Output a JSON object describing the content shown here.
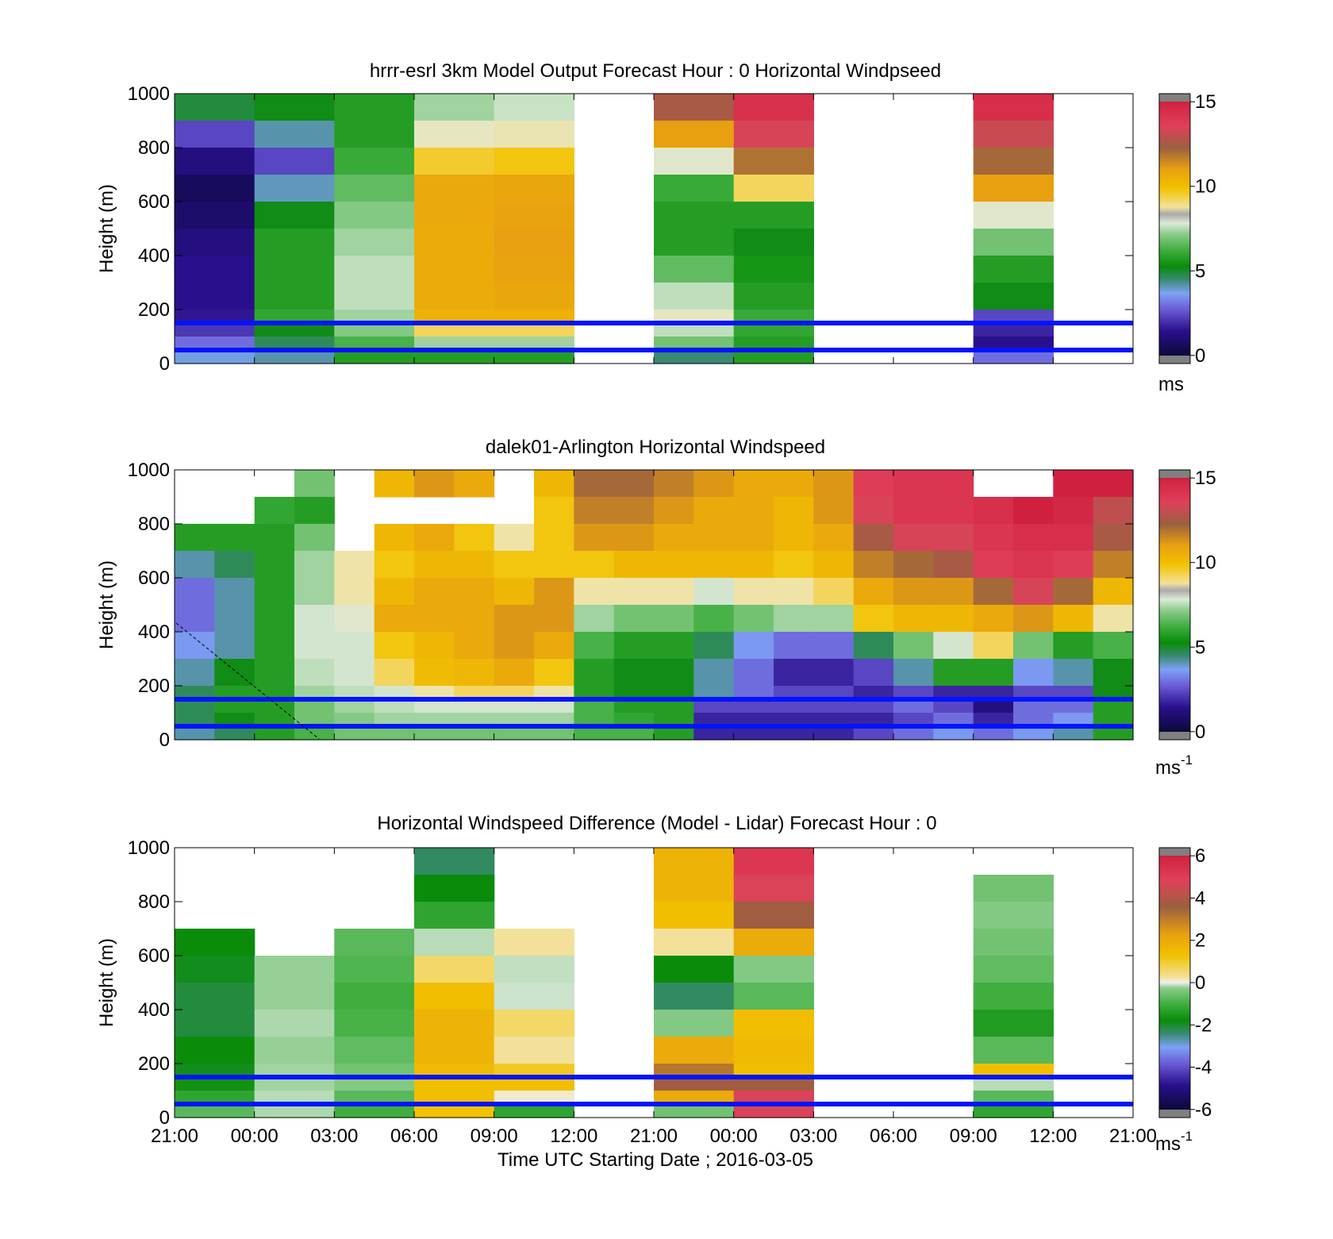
{
  "figure": {
    "xlabel": "Time UTC  Starting Date ; 2016-03-05",
    "xticks": [
      "21:00",
      "00:00",
      "03:00",
      "06:00",
      "09:00",
      "12:00",
      "21:00",
      "00:00",
      "03:00",
      "06:00",
      "09:00",
      "12:00",
      "21:00"
    ]
  },
  "panels": [
    {
      "title": "hrrr-esrl 3km Model Output   Forecast Hour : 0 Horizontal Windpseed",
      "ylabel": "Height (m)",
      "yticks": [
        "0",
        "200",
        "400",
        "600",
        "800",
        "1000"
      ],
      "colorbar": {
        "ticks": [
          "0",
          "5",
          "10",
          "15"
        ],
        "unit": "ms",
        "unit_sup": ""
      }
    },
    {
      "title": "dalek01-Arlington  Horizontal Windspeed",
      "ylabel": "Height (m)",
      "yticks": [
        "0",
        "200",
        "400",
        "600",
        "800",
        "1000"
      ],
      "colorbar": {
        "ticks": [
          "0",
          "5",
          "10",
          "15"
        ],
        "unit": "ms",
        "unit_sup": "-1"
      }
    },
    {
      "title": "Horizontal Windspeed Difference (Model - Lidar) Forecast Hour : 0",
      "ylabel": "Height (m)",
      "yticks": [
        "0",
        "200",
        "400",
        "600",
        "800",
        "1000"
      ],
      "colorbar": {
        "ticks": [
          "-6",
          "-4",
          "-2",
          "0",
          "2",
          "4",
          "6"
        ],
        "unit": "ms",
        "unit_sup": "-1"
      }
    }
  ],
  "chart_data": [
    {
      "type": "heatmap",
      "title": "hrrr-esrl 3km Model Output   Forecast Hour : 0 Horizontal Windpseed",
      "ylabel": "Height (m)",
      "ylim": [
        0,
        1000
      ],
      "xlim": [
        0,
        12
      ],
      "colorbar_range": [
        0,
        15
      ],
      "colorbar_unit": "ms",
      "heights": [
        1000,
        900,
        800,
        700,
        600,
        500,
        400,
        300,
        200,
        150,
        100,
        50,
        0
      ],
      "columns": [
        {
          "x0": 0,
          "x1": 1,
          "values": [
            4.2,
            2.0,
            1.0,
            0.5,
            0.7,
            1.0,
            1.2,
            1.2,
            1.3,
            1.8,
            2.5,
            3.2
          ]
        },
        {
          "x0": 1,
          "x1": 2,
          "values": [
            4.5,
            3.5,
            2.0,
            3.4,
            4.5,
            5.0,
            5.0,
            5.0,
            5.2,
            4.5,
            4.0,
            3.5
          ]
        },
        {
          "x0": 2,
          "x1": 3,
          "values": [
            5.0,
            5.0,
            5.3,
            5.8,
            6.2,
            6.5,
            6.8,
            6.8,
            6.5,
            6.2,
            5.5,
            5.0
          ]
        },
        {
          "x0": 3,
          "x1": 4,
          "values": [
            6.5,
            7.3,
            8.3,
            9.5,
            9.5,
            9.4,
            9.4,
            9.4,
            9.2,
            8.0,
            6.5,
            5.0
          ]
        },
        {
          "x0": 4,
          "x1": 5,
          "values": [
            6.9,
            7.4,
            8.5,
            9.6,
            9.7,
            9.8,
            9.7,
            9.6,
            9.2,
            8.0,
            6.5,
            5.0
          ]
        },
        {
          "x0": 6,
          "x1": 7,
          "values": [
            11.5,
            9.8,
            7.2,
            5.3,
            5.0,
            5.0,
            5.8,
            6.8,
            7.3,
            6.8,
            6.0,
            3.8
          ]
        },
        {
          "x0": 7,
          "x1": 8,
          "values": [
            13.8,
            12.5,
            10.8,
            8.0,
            5.0,
            4.5,
            4.8,
            5.0,
            5.3,
            5.2,
            5.0,
            5.0
          ]
        },
        {
          "x0": 10,
          "x1": 11,
          "values": [
            14.0,
            12.2,
            11.0,
            9.8,
            7.2,
            6.0,
            5.0,
            4.5,
            2.0,
            1.5,
            1.2,
            2.5
          ]
        }
      ],
      "reference_lines_m": [
        150,
        50
      ]
    },
    {
      "type": "heatmap",
      "title": "dalek01-Arlington  Horizontal Windspeed",
      "ylabel": "Height (m)",
      "ylim": [
        0,
        1000
      ],
      "xlim": [
        0,
        12
      ],
      "colorbar_range": [
        0,
        15
      ],
      "colorbar_unit": "ms-1",
      "heights": [
        1000,
        900,
        800,
        700,
        600,
        500,
        400,
        300,
        200,
        150,
        100,
        50,
        0
      ],
      "columns": [
        {
          "x0": 0.0,
          "x1": 0.5,
          "values": [
            null,
            null,
            5.0,
            3.5,
            2.5,
            2.5,
            3.0,
            3.5,
            4.0,
            4.0,
            4.0,
            3.5
          ]
        },
        {
          "x0": 0.5,
          "x1": 1.0,
          "values": [
            null,
            null,
            5.0,
            4.0,
            3.5,
            3.5,
            3.5,
            4.5,
            5.0,
            5.0,
            4.5,
            4.0
          ]
        },
        {
          "x0": 1.0,
          "x1": 1.5,
          "values": [
            null,
            5.2,
            5.0,
            5.0,
            5.0,
            5.0,
            5.0,
            5.0,
            5.0,
            5.0,
            5.0,
            5.0
          ]
        },
        {
          "x0": 1.5,
          "x1": 2.0,
          "values": [
            6.0,
            5.0,
            6.0,
            6.5,
            6.5,
            7.0,
            7.0,
            6.8,
            6.5,
            6.0,
            6.0,
            5.5
          ]
        },
        {
          "x0": 2.0,
          "x1": 2.5,
          "values": [
            null,
            null,
            null,
            7.5,
            7.5,
            7.2,
            7.0,
            7.0,
            6.8,
            6.5,
            6.2,
            6.0
          ]
        },
        {
          "x0": 2.5,
          "x1": 3.0,
          "values": [
            9.0,
            null,
            9.0,
            8.5,
            9.0,
            9.5,
            8.5,
            8.0,
            7.0,
            6.8,
            6.5,
            6.0
          ]
        },
        {
          "x0": 3.0,
          "x1": 3.5,
          "values": [
            10.0,
            null,
            9.5,
            9.0,
            9.5,
            9.5,
            9.0,
            8.8,
            7.5,
            7.0,
            6.5,
            6.0
          ]
        },
        {
          "x0": 3.5,
          "x1": 4.0,
          "values": [
            9.5,
            null,
            8.5,
            9.0,
            9.5,
            9.5,
            9.5,
            9.0,
            8.0,
            7.0,
            6.5,
            6.0
          ]
        },
        {
          "x0": 4.0,
          "x1": 4.5,
          "values": [
            null,
            null,
            7.5,
            8.5,
            9.0,
            10.0,
            10.0,
            9.5,
            8.0,
            7.0,
            6.5,
            6.0
          ]
        },
        {
          "x0": 4.5,
          "x1": 5.0,
          "values": [
            9.0,
            8.5,
            8.5,
            8.5,
            10.0,
            10.0,
            9.5,
            8.5,
            7.5,
            7.0,
            6.5,
            6.0
          ]
        },
        {
          "x0": 5.0,
          "x1": 5.5,
          "values": [
            11.0,
            10.5,
            10.0,
            8.5,
            7.5,
            6.5,
            5.5,
            5.0,
            5.0,
            5.5,
            5.5,
            5.5
          ]
        },
        {
          "x0": 5.5,
          "x1": 6.0,
          "values": [
            11.0,
            10.5,
            10.0,
            9.0,
            7.5,
            6.0,
            5.0,
            4.5,
            4.5,
            5.0,
            5.2,
            5.5
          ]
        },
        {
          "x0": 6.0,
          "x1": 6.5,
          "values": [
            10.5,
            10.0,
            9.5,
            9.0,
            7.5,
            6.0,
            5.0,
            4.5,
            4.5,
            5.0,
            5.0,
            5.0
          ]
        },
        {
          "x0": 6.5,
          "x1": 7.0,
          "values": [
            10.0,
            9.5,
            9.5,
            9.0,
            7.0,
            5.5,
            4.0,
            3.5,
            3.5,
            2.0,
            1.5,
            1.5
          ]
        },
        {
          "x0": 7.0,
          "x1": 7.5,
          "values": [
            9.5,
            9.5,
            9.5,
            9.0,
            7.5,
            6.0,
            3.0,
            2.5,
            2.5,
            2.0,
            1.5,
            1.5
          ]
        },
        {
          "x0": 7.5,
          "x1": 8.0,
          "values": [
            9.5,
            9.0,
            9.0,
            8.5,
            7.5,
            6.5,
            2.5,
            1.5,
            2.0,
            2.0,
            1.5,
            1.5
          ]
        },
        {
          "x0": 8.0,
          "x1": 8.5,
          "values": [
            10.0,
            10.0,
            9.5,
            9.0,
            8.0,
            6.5,
            2.5,
            1.5,
            2.0,
            2.0,
            1.5,
            1.5
          ]
        },
        {
          "x0": 8.5,
          "x1": 9.0,
          "values": [
            13.0,
            12.5,
            11.5,
            10.5,
            9.5,
            8.5,
            4.0,
            2.0,
            1.5,
            2.0,
            1.5,
            2.0
          ]
        },
        {
          "x0": 9.0,
          "x1": 9.5,
          "values": [
            13.5,
            13.5,
            12.5,
            11.0,
            10.0,
            9.0,
            6.0,
            3.5,
            2.0,
            2.5,
            2.0,
            2.5
          ]
        },
        {
          "x0": 9.5,
          "x1": 10.0,
          "values": [
            13.5,
            13.5,
            12.5,
            11.5,
            10.0,
            9.0,
            7.0,
            5.0,
            1.5,
            2.0,
            2.5,
            3.0
          ]
        },
        {
          "x0": 10.0,
          "x1": 10.5,
          "values": [
            null,
            14.0,
            13.5,
            13.0,
            11.0,
            9.5,
            8.0,
            5.0,
            1.5,
            1.0,
            1.5,
            2.5
          ]
        },
        {
          "x0": 10.5,
          "x1": 11.0,
          "values": [
            null,
            15.0,
            14.0,
            13.5,
            12.5,
            10.0,
            6.0,
            3.0,
            2.0,
            2.5,
            2.5,
            3.0
          ]
        },
        {
          "x0": 11.0,
          "x1": 11.5,
          "values": [
            15.0,
            14.5,
            14.0,
            13.0,
            11.0,
            9.0,
            5.0,
            3.5,
            2.0,
            2.5,
            3.0,
            3.5
          ]
        },
        {
          "x0": 11.5,
          "x1": 12.0,
          "values": [
            15.0,
            12.0,
            11.5,
            10.5,
            9.0,
            7.5,
            5.5,
            4.5,
            4.5,
            5.0,
            5.0,
            5.0
          ]
        }
      ],
      "reference_lines_m": [
        150,
        50
      ]
    },
    {
      "type": "heatmap",
      "title": "Horizontal Windspeed Difference (Model - Lidar) Forecast Hour : 0",
      "ylabel": "Height (m)",
      "ylim": [
        0,
        1000
      ],
      "xlim": [
        0,
        12
      ],
      "colorbar_range": [
        -6,
        6
      ],
      "colorbar_unit": "ms-1",
      "heights": [
        1000,
        900,
        800,
        700,
        600,
        500,
        400,
        300,
        200,
        150,
        100,
        50,
        0
      ],
      "columns": [
        {
          "x0": 0,
          "x1": 1,
          "values": [
            null,
            null,
            null,
            -2.5,
            -2.6,
            -2.8,
            -2.8,
            -2.5,
            -2.6,
            -2.4,
            -2.0,
            -1.5
          ]
        },
        {
          "x0": 1,
          "x1": 2,
          "values": [
            null,
            null,
            null,
            null,
            -0.8,
            -0.8,
            -0.6,
            -0.8,
            -0.7,
            -0.7,
            -0.5,
            -0.6
          ]
        },
        {
          "x0": 2,
          "x1": 3,
          "values": [
            null,
            null,
            null,
            -1.5,
            -1.6,
            -1.8,
            -1.7,
            -1.4,
            -1.2,
            -1.0,
            -1.5,
            -1.8
          ]
        },
        {
          "x0": 3,
          "x1": 4,
          "values": [
            -3.0,
            -2.5,
            -2.0,
            -0.5,
            0.8,
            1.5,
            1.8,
            1.8,
            1.6,
            1.5,
            1.5,
            1.4
          ]
        },
        {
          "x0": 4,
          "x1": 5,
          "values": [
            null,
            null,
            null,
            0.5,
            -0.4,
            -0.3,
            0.8,
            0.5,
            1.2,
            1.5,
            0.2,
            -2.0
          ]
        },
        {
          "x0": 6,
          "x1": 7,
          "values": [
            1.8,
            1.8,
            1.5,
            0.5,
            -2.5,
            -3.0,
            -1.0,
            2.0,
            3.0,
            3.5,
            2.0,
            -1.2
          ]
        },
        {
          "x0": 7,
          "x1": 8,
          "values": [
            5.0,
            4.5,
            3.5,
            2.0,
            -1.0,
            -1.5,
            1.5,
            1.6,
            1.5,
            3.5,
            4.5,
            4.5
          ]
        },
        {
          "x0": 10,
          "x1": 11,
          "values": [
            null,
            -1.2,
            -1.0,
            -1.2,
            -1.4,
            -1.8,
            -2.2,
            -1.5,
            1.5,
            -0.5,
            -1.5,
            -2.0
          ]
        }
      ],
      "reference_lines_m": [
        150,
        50
      ]
    }
  ]
}
